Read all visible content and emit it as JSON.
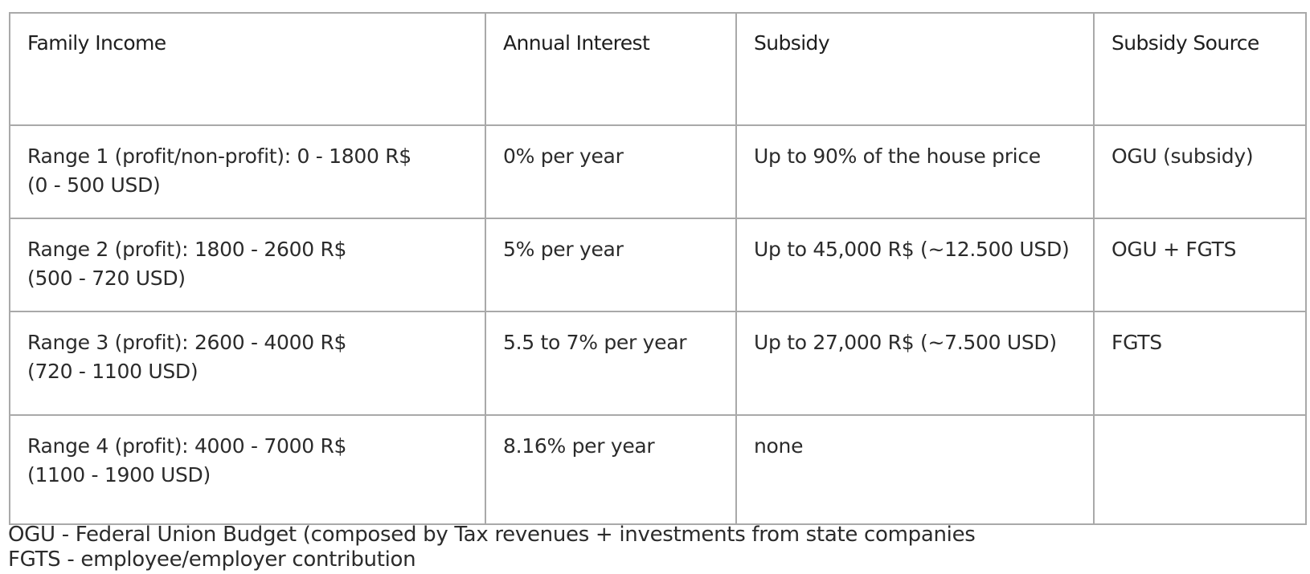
{
  "table": {
    "headers": [
      "Family Income",
      "Annual Interest",
      "Subsidy",
      "Subsidy Source"
    ],
    "rows": [
      {
        "income_line1": "Range 1 (profit/non-profit): 0 - 1800 R$",
        "income_line2": "(0 - 500 USD)",
        "interest": "0% per year",
        "subsidy": "Up to 90% of the house price",
        "source": "OGU (subsidy)"
      },
      {
        "income_line1": "Range 2 (profit): 1800 - 2600 R$",
        "income_line2": "(500 - 720 USD)",
        "interest": "5% per year",
        "subsidy": "Up to 45,000 R$ (~12.500 USD)",
        "source": "OGU + FGTS"
      },
      {
        "income_line1": "Range 3 (profit): 2600 - 4000 R$",
        "income_line2": "(720 - 1100 USD)",
        "interest": "5.5 to 7% per year",
        "subsidy": "Up to 27,000 R$ (~7.500 USD)",
        "source": "FGTS"
      },
      {
        "income_line1": "Range 4 (profit): 4000 - 7000 R$",
        "income_line2": "(1100 - 1900 USD)",
        "interest": "8.16% per year",
        "subsidy": "none",
        "source": ""
      }
    ]
  },
  "footnotes": [
    "OGU - Federal Union Budget (composed by Tax revenues + investments from state companies",
    "FGTS - employee/employer contribution"
  ]
}
